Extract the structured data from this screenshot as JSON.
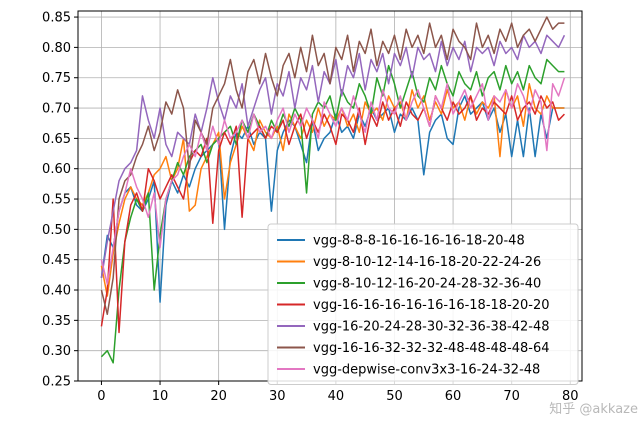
{
  "watermark": "知乎 @akkaze",
  "chart_data": {
    "type": "line",
    "title": "",
    "xlabel": "",
    "ylabel": "",
    "xlim": [
      -4,
      82
    ],
    "ylim": [
      0.25,
      0.86
    ],
    "xticks": [
      0,
      10,
      20,
      30,
      40,
      50,
      60,
      70,
      80
    ],
    "yticks": [
      0.25,
      0.3,
      0.35,
      0.4,
      0.45,
      0.5,
      0.55,
      0.6,
      0.65,
      0.7,
      0.75,
      0.8,
      0.85
    ],
    "grid": true,
    "legend_position": "lower-right",
    "series": [
      {
        "name": "vgg-8-8-8-16-16-16-16-18-20-48",
        "color": "#1f77b4",
        "values": [
          0.42,
          0.49,
          0.47,
          0.53,
          0.56,
          0.57,
          0.54,
          0.53,
          0.55,
          0.58,
          0.38,
          0.54,
          0.58,
          0.56,
          0.59,
          0.57,
          0.6,
          0.62,
          0.63,
          0.64,
          0.65,
          0.5,
          0.62,
          0.66,
          0.65,
          0.67,
          0.64,
          0.66,
          0.65,
          0.53,
          0.63,
          0.66,
          0.68,
          0.67,
          0.64,
          0.61,
          0.68,
          0.63,
          0.65,
          0.66,
          0.69,
          0.66,
          0.67,
          0.65,
          0.69,
          0.67,
          0.7,
          0.68,
          0.69,
          0.7,
          0.66,
          0.69,
          0.68,
          0.7,
          0.68,
          0.59,
          0.66,
          0.68,
          0.69,
          0.65,
          0.64,
          0.7,
          0.72,
          0.69,
          0.7,
          0.71,
          0.68,
          0.7,
          0.66,
          0.69,
          0.62,
          0.68,
          0.62,
          0.7,
          0.62,
          0.69,
          0.65,
          0.7,
          0.7,
          0.7
        ]
      },
      {
        "name": "vgg-8-10-12-14-16-18-20-22-24-26",
        "color": "#ff7f0e",
        "values": [
          0.44,
          0.39,
          0.46,
          0.51,
          0.55,
          0.57,
          0.55,
          0.54,
          0.56,
          0.59,
          0.6,
          0.62,
          0.58,
          0.6,
          0.65,
          0.53,
          0.54,
          0.6,
          0.62,
          0.64,
          0.66,
          0.55,
          0.61,
          0.64,
          0.67,
          0.65,
          0.63,
          0.68,
          0.66,
          0.65,
          0.67,
          0.63,
          0.69,
          0.67,
          0.65,
          0.68,
          0.66,
          0.7,
          0.67,
          0.69,
          0.68,
          0.7,
          0.67,
          0.69,
          0.66,
          0.71,
          0.69,
          0.7,
          0.68,
          0.72,
          0.7,
          0.71,
          0.68,
          0.73,
          0.7,
          0.72,
          0.68,
          0.71,
          0.69,
          0.73,
          0.7,
          0.71,
          0.68,
          0.72,
          0.69,
          0.71,
          0.7,
          0.72,
          0.62,
          0.73,
          0.7,
          0.72,
          0.67,
          0.74,
          0.7,
          0.69,
          0.72,
          0.7,
          0.7,
          0.7
        ]
      },
      {
        "name": "vgg-8-10-12-16-20-24-28-32-36-40",
        "color": "#2ca02c",
        "values": [
          0.29,
          0.3,
          0.28,
          0.4,
          0.48,
          0.52,
          0.55,
          0.53,
          0.56,
          0.4,
          0.49,
          0.55,
          0.58,
          0.61,
          0.59,
          0.62,
          0.63,
          0.64,
          0.61,
          0.64,
          0.65,
          0.66,
          0.67,
          0.64,
          0.68,
          0.66,
          0.69,
          0.67,
          0.65,
          0.68,
          0.66,
          0.69,
          0.67,
          0.7,
          0.68,
          0.56,
          0.69,
          0.71,
          0.7,
          0.72,
          0.68,
          0.73,
          0.71,
          0.7,
          0.74,
          0.72,
          0.69,
          0.75,
          0.72,
          0.77,
          0.74,
          0.7,
          0.73,
          0.76,
          0.72,
          0.71,
          0.75,
          0.73,
          0.77,
          0.74,
          0.72,
          0.76,
          0.74,
          0.73,
          0.76,
          0.72,
          0.75,
          0.76,
          0.73,
          0.77,
          0.74,
          0.76,
          0.73,
          0.77,
          0.75,
          0.74,
          0.78,
          0.77,
          0.76,
          0.76
        ]
      },
      {
        "name": "vgg-16-16-16-16-16-16-18-18-20-20",
        "color": "#d62728",
        "values": [
          0.34,
          0.4,
          0.55,
          0.33,
          0.48,
          0.54,
          0.56,
          0.53,
          0.6,
          0.58,
          0.55,
          0.57,
          0.59,
          0.57,
          0.55,
          0.61,
          0.63,
          0.62,
          0.65,
          0.51,
          0.63,
          0.66,
          0.64,
          0.67,
          0.52,
          0.65,
          0.66,
          0.67,
          0.65,
          0.67,
          0.66,
          0.68,
          0.64,
          0.67,
          0.69,
          0.65,
          0.68,
          0.66,
          0.69,
          0.67,
          0.64,
          0.69,
          0.68,
          0.66,
          0.7,
          0.64,
          0.69,
          0.67,
          0.71,
          0.68,
          0.7,
          0.67,
          0.71,
          0.69,
          0.68,
          0.7,
          0.67,
          0.72,
          0.7,
          0.68,
          0.71,
          0.69,
          0.7,
          0.72,
          0.68,
          0.7,
          0.69,
          0.71,
          0.7,
          0.69,
          0.72,
          0.68,
          0.7,
          0.71,
          0.69,
          0.72,
          0.7,
          0.71,
          0.68,
          0.69
        ]
      },
      {
        "name": "vgg-16-20-24-28-30-32-36-38-42-48",
        "color": "#9467bd",
        "values": [
          0.42,
          0.48,
          0.53,
          0.58,
          0.6,
          0.61,
          0.63,
          0.72,
          0.68,
          0.65,
          0.7,
          0.64,
          0.62,
          0.66,
          0.65,
          0.64,
          0.69,
          0.66,
          0.7,
          0.75,
          0.71,
          0.68,
          0.72,
          0.7,
          0.74,
          0.67,
          0.7,
          0.73,
          0.75,
          0.69,
          0.74,
          0.72,
          0.76,
          0.7,
          0.75,
          0.73,
          0.77,
          0.71,
          0.76,
          0.74,
          0.78,
          0.72,
          0.77,
          0.75,
          0.79,
          0.73,
          0.78,
          0.76,
          0.79,
          0.74,
          0.79,
          0.77,
          0.8,
          0.75,
          0.8,
          0.78,
          0.79,
          0.76,
          0.81,
          0.77,
          0.8,
          0.78,
          0.81,
          0.76,
          0.8,
          0.79,
          0.8,
          0.77,
          0.81,
          0.79,
          0.8,
          0.78,
          0.82,
          0.8,
          0.81,
          0.79,
          0.82,
          0.81,
          0.8,
          0.82
        ]
      },
      {
        "name": "vgg-16-16-32-32-32-48-48-48-48-64",
        "color": "#8c564b",
        "values": [
          0.4,
          0.36,
          0.42,
          0.55,
          0.58,
          0.59,
          0.62,
          0.64,
          0.67,
          0.63,
          0.66,
          0.71,
          0.69,
          0.73,
          0.7,
          0.6,
          0.68,
          0.66,
          0.64,
          0.7,
          0.72,
          0.74,
          0.78,
          0.73,
          0.7,
          0.76,
          0.78,
          0.74,
          0.79,
          0.75,
          0.72,
          0.77,
          0.79,
          0.75,
          0.8,
          0.76,
          0.82,
          0.77,
          0.79,
          0.74,
          0.8,
          0.78,
          0.82,
          0.76,
          0.81,
          0.79,
          0.83,
          0.77,
          0.81,
          0.79,
          0.82,
          0.78,
          0.83,
          0.8,
          0.82,
          0.79,
          0.84,
          0.8,
          0.82,
          0.78,
          0.83,
          0.81,
          0.8,
          0.78,
          0.84,
          0.8,
          0.82,
          0.79,
          0.83,
          0.81,
          0.84,
          0.8,
          0.82,
          0.83,
          0.81,
          0.83,
          0.85,
          0.83,
          0.84,
          0.84
        ]
      },
      {
        "name": "vgg-depwise-conv3x3-16-24-32-48",
        "color": "#e377c2",
        "values": [
          0.45,
          0.41,
          0.47,
          0.53,
          0.56,
          0.6,
          0.57,
          0.55,
          0.52,
          0.56,
          0.47,
          0.55,
          0.58,
          0.59,
          0.62,
          0.64,
          0.62,
          0.66,
          0.63,
          0.67,
          0.64,
          0.68,
          0.65,
          0.66,
          0.68,
          0.65,
          0.69,
          0.66,
          0.67,
          0.65,
          0.68,
          0.7,
          0.66,
          0.69,
          0.67,
          0.7,
          0.68,
          0.65,
          0.71,
          0.69,
          0.67,
          0.7,
          0.68,
          0.72,
          0.69,
          0.66,
          0.71,
          0.68,
          0.73,
          0.7,
          0.69,
          0.72,
          0.68,
          0.71,
          0.73,
          0.7,
          0.67,
          0.72,
          0.7,
          0.74,
          0.69,
          0.71,
          0.73,
          0.7,
          0.72,
          0.74,
          0.68,
          0.72,
          0.71,
          0.73,
          0.7,
          0.74,
          0.72,
          0.69,
          0.73,
          0.71,
          0.63,
          0.74,
          0.72,
          0.75
        ]
      }
    ]
  }
}
